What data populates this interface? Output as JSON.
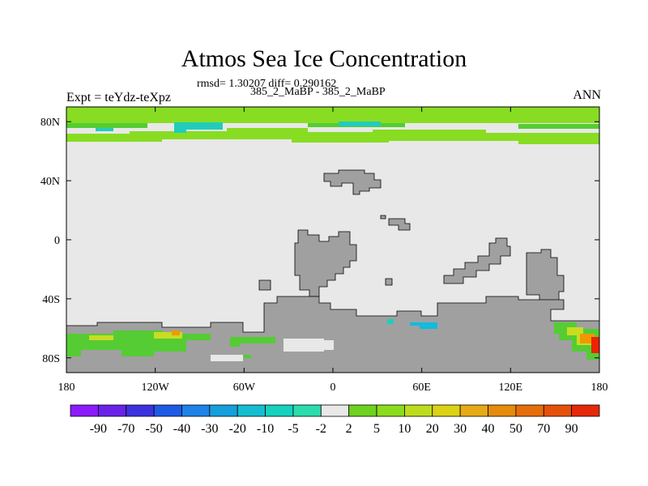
{
  "figure": {
    "title": "Atmos Sea Ice Concentration",
    "stats": "rmsd= 1.30207 diff= 0.290162",
    "subtitle": "385_2_MaBP - 385_2_MaBP",
    "left_label": "Expt = teYdz-teXpz",
    "right_label": "ANN"
  },
  "colors": {
    "land": "#a0a0a0",
    "ocean_near_zero": "#e8e8e8",
    "light_green": "#88dd22",
    "green": "#55cc33",
    "yellow_green": "#c8dd22",
    "teal": "#22ccbb",
    "cyan": "#11bbdd",
    "orange": "#ee9900",
    "red": "#ee2200"
  },
  "chart_data": {
    "type": "heatmap",
    "title": "Atmos Sea Ice Concentration",
    "projection": "cylindrical-equidistant",
    "xlim": [
      -180,
      180
    ],
    "ylim": [
      -90,
      90
    ],
    "x_ticks": [
      -180,
      -120,
      -60,
      0,
      60,
      120,
      180
    ],
    "x_tick_labels": [
      "180",
      "120W",
      "60W",
      "0",
      "60E",
      "120E",
      "180"
    ],
    "y_ticks": [
      80,
      40,
      0,
      -40,
      -80
    ],
    "y_tick_labels": [
      "80N",
      "40N",
      "0",
      "40S",
      "80S"
    ],
    "colorbar": {
      "levels": [
        "-90",
        "-70",
        "-50",
        "-40",
        "-30",
        "-20",
        "-10",
        "-5",
        "-2",
        "2",
        "5",
        "10",
        "20",
        "30",
        "40",
        "50",
        "70",
        "90"
      ],
      "colors": [
        "#8c1aff",
        "#6a22e8",
        "#3c32e0",
        "#1e5ae6",
        "#1e82e6",
        "#14a0dc",
        "#14bed2",
        "#14d2be",
        "#2adcac",
        "#e8e8e8",
        "#6ed21e",
        "#8cdc1e",
        "#bedc1e",
        "#dcd214",
        "#e6aa14",
        "#e68c0a",
        "#e66e0a",
        "#e6500a",
        "#e6280a"
      ],
      "placement": "bottom"
    }
  }
}
